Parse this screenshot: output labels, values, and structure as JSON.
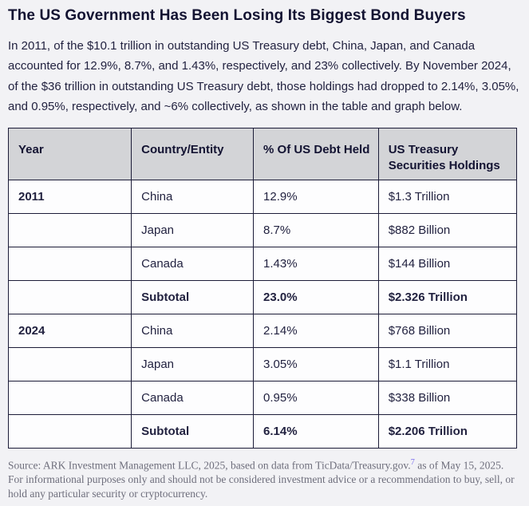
{
  "title": "The US Government Has Been Losing Its Biggest Bond Buyers",
  "intro": "In 2011, of the $10.1 trillion in outstanding US Treasury debt, China, Japan, and Canada accounted for 12.9%, 8.7%, and 1.43%, respectively, and 23% collectively. By November 2024, of the $36 trillion in outstanding US Treasury debt, those holdings had dropped to 2.14%, 3.05%, and 0.95%, respectively, and ~6% collectively, as shown in the table and graph below.",
  "table": {
    "headers": [
      "Year",
      "Country/Entity",
      "% Of US Debt Held",
      "US Treasury Securities Holdings"
    ],
    "rows": [
      {
        "year": "2011",
        "country": "China",
        "pct": "12.9%",
        "holdings": "$1.3 Trillion",
        "bold": false
      },
      {
        "year": "",
        "country": "Japan",
        "pct": "8.7%",
        "holdings": "$882 Billion",
        "bold": false
      },
      {
        "year": "",
        "country": "Canada",
        "pct": "1.43%",
        "holdings": "$144 Billion",
        "bold": false
      },
      {
        "year": "",
        "country": "Subtotal",
        "pct": "23.0%",
        "holdings": "$2.326 Trillion",
        "bold": true
      },
      {
        "year": "2024",
        "country": "China",
        "pct": "2.14%",
        "holdings": "$768 Billion",
        "bold": false
      },
      {
        "year": "",
        "country": "Japan",
        "pct": "3.05%",
        "holdings": "$1.1 Trillion",
        "bold": false
      },
      {
        "year": "",
        "country": "Canada",
        "pct": "0.95%",
        "holdings": "$338 Billion",
        "bold": false
      },
      {
        "year": "",
        "country": "Subtotal",
        "pct": "6.14%",
        "holdings": "$2.206 Trillion",
        "bold": true
      }
    ]
  },
  "source": {
    "text_before_link": "Source: ARK Investment Management LLC, 2025, based on data from TicData/Treasury.gov.",
    "footnote_number": "7",
    "text_after_link": " as of May 15, 2025. For informational purposes only and should not be considered investment advice or a recommendation to buy, sell, or hold any particular security or cryptocurrency."
  },
  "colors": {
    "page_bg": "#f2f2f5",
    "title_text": "#131332",
    "body_text": "#222240",
    "table_border": "#1c1c38",
    "header_bg": "#d3d4d7",
    "cell_bg": "#fdfdfe",
    "source_text": "#6e6e7c",
    "footnote_link": "#7b6ff0"
  }
}
